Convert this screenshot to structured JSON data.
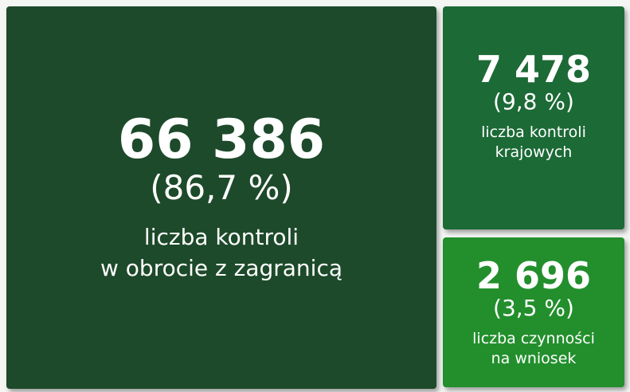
{
  "tiles": [
    {
      "value": "66 386",
      "share": "(86,7 %)",
      "label": [
        "liczba kontroli",
        "w obrocie z zagranicą"
      ]
    },
    {
      "value": "7 478",
      "share": "(9,8 %)",
      "label": [
        "liczba kontroli",
        "krajowych"
      ]
    },
    {
      "value": "2 696",
      "share": "(3,5 %)",
      "label": [
        "liczba czynności",
        "na wniosek"
      ]
    }
  ]
}
